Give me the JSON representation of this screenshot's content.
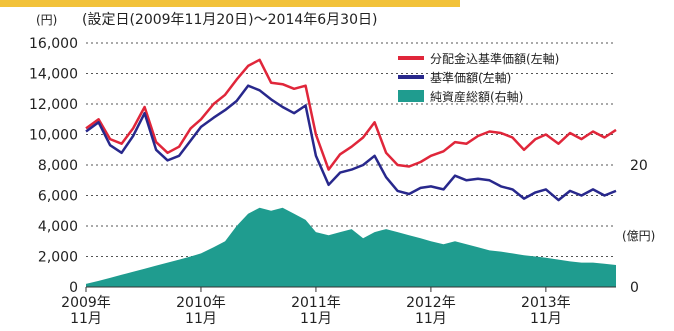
{
  "header": {
    "unit_left": "(円)",
    "title": "(設定日(2009年11月20日)〜2014年6月30日)"
  },
  "axes": {
    "right_unit": "(億円)"
  },
  "colors": {
    "top_band": "#f2c23a",
    "nav_dividend": "#e0263a",
    "nav": "#28288c",
    "net_assets": "#1f9c8f",
    "grid": "#555555"
  },
  "chart_data": {
    "type": "line",
    "title": "(設定日(2009年11月20日)〜2014年6月30日)",
    "x_ticks": [
      {
        "line1": "2009年",
        "line2": "11月"
      },
      {
        "line1": "2010年",
        "line2": "11月"
      },
      {
        "line1": "2011年",
        "line2": "11月"
      },
      {
        "line1": "2012年",
        "line2": "11月"
      },
      {
        "line1": "2013年",
        "line2": "11月"
      }
    ],
    "y_left": {
      "range": [
        0,
        16000
      ],
      "ticks": [
        "0",
        "2,000",
        "4,000",
        "6,000",
        "8,000",
        "10,000",
        "12,000",
        "14,000",
        "16,000"
      ]
    },
    "y_right": {
      "range": [
        0,
        40
      ],
      "ticks": [
        "0",
        "20"
      ]
    },
    "legend": [
      {
        "label": "分配金込基準価額(左軸)",
        "color": "#e0263a",
        "kind": "line"
      },
      {
        "label": "基準価額(左軸)",
        "color": "#28288c",
        "kind": "line"
      },
      {
        "label": "純資産総額(右軸)",
        "color": "#1f9c8f",
        "kind": "box"
      }
    ],
    "legend_placement": "top-right",
    "series": [
      {
        "name": "分配金込基準価額(左軸)",
        "axis": "left",
        "kind": "line",
        "x": [
          2009.89,
          2010.0,
          2010.1,
          2010.2,
          2010.3,
          2010.4,
          2010.5,
          2010.6,
          2010.7,
          2010.8,
          2010.89,
          2011.0,
          2011.1,
          2011.2,
          2011.3,
          2011.4,
          2011.5,
          2011.6,
          2011.7,
          2011.8,
          2011.89,
          2012.0,
          2012.1,
          2012.2,
          2012.3,
          2012.4,
          2012.5,
          2012.6,
          2012.7,
          2012.8,
          2012.89,
          2013.0,
          2013.1,
          2013.2,
          2013.3,
          2013.4,
          2013.5,
          2013.6,
          2013.7,
          2013.8,
          2013.89,
          2014.0,
          2014.1,
          2014.2,
          2014.3,
          2014.4,
          2014.5
        ],
        "values": [
          10400,
          11000,
          9700,
          9400,
          10400,
          11800,
          9500,
          8800,
          9200,
          10400,
          11000,
          12000,
          12600,
          13600,
          14500,
          14900,
          13400,
          13300,
          13000,
          13200,
          10000,
          7700,
          8700,
          9200,
          9800,
          10800,
          8800,
          8000,
          7900,
          8200,
          8600,
          8900,
          9500,
          9400,
          9900,
          10200,
          10100,
          9800,
          9000,
          9700,
          10000,
          9400,
          10100,
          9700,
          10200,
          9800,
          10300
        ]
      },
      {
        "name": "基準価額(左軸)",
        "axis": "left",
        "kind": "line",
        "x": [
          2009.89,
          2010.0,
          2010.1,
          2010.2,
          2010.3,
          2010.4,
          2010.5,
          2010.6,
          2010.7,
          2010.8,
          2010.89,
          2011.0,
          2011.1,
          2011.2,
          2011.3,
          2011.4,
          2011.5,
          2011.6,
          2011.7,
          2011.8,
          2011.89,
          2012.0,
          2012.1,
          2012.2,
          2012.3,
          2012.4,
          2012.5,
          2012.6,
          2012.7,
          2012.8,
          2012.89,
          2013.0,
          2013.1,
          2013.2,
          2013.3,
          2013.4,
          2013.5,
          2013.6,
          2013.7,
          2013.8,
          2013.89,
          2014.0,
          2014.1,
          2014.2,
          2014.3,
          2014.4,
          2014.5
        ],
        "values": [
          10200,
          10800,
          9300,
          8800,
          9900,
          11400,
          9000,
          8300,
          8600,
          9600,
          10500,
          11100,
          11600,
          12200,
          13200,
          12900,
          12300,
          11800,
          11400,
          11900,
          8600,
          6700,
          7500,
          7700,
          8000,
          8600,
          7200,
          6300,
          6100,
          6500,
          6600,
          6400,
          7300,
          7000,
          7100,
          7000,
          6600,
          6400,
          5800,
          6200,
          6400,
          5700,
          6300,
          6000,
          6400,
          6000,
          6300
        ]
      },
      {
        "name": "純資産総額(右軸)",
        "axis": "right",
        "kind": "area",
        "x": [
          2009.89,
          2010.0,
          2010.1,
          2010.2,
          2010.3,
          2010.4,
          2010.5,
          2010.6,
          2010.7,
          2010.8,
          2010.89,
          2011.0,
          2011.1,
          2011.2,
          2011.3,
          2011.4,
          2011.5,
          2011.6,
          2011.7,
          2011.8,
          2011.89,
          2012.0,
          2012.1,
          2012.2,
          2012.3,
          2012.4,
          2012.5,
          2012.6,
          2012.7,
          2012.8,
          2012.89,
          2013.0,
          2013.1,
          2013.2,
          2013.3,
          2013.4,
          2013.5,
          2013.6,
          2013.7,
          2013.8,
          2013.89,
          2014.0,
          2014.1,
          2014.2,
          2014.3,
          2014.4,
          2014.5
        ],
        "values": [
          0.5,
          1,
          1.5,
          2,
          2.5,
          3,
          3.5,
          4,
          4.5,
          5,
          5.5,
          6.5,
          7.5,
          10,
          12,
          13,
          12.5,
          13,
          12,
          11,
          9,
          8.5,
          9,
          9.5,
          8,
          9,
          9.5,
          9,
          8.5,
          8,
          7.5,
          7,
          7.5,
          7,
          6.5,
          6,
          5.8,
          5.5,
          5.2,
          5,
          4.8,
          4.5,
          4.2,
          4,
          4,
          3.8,
          3.6
        ]
      }
    ]
  }
}
